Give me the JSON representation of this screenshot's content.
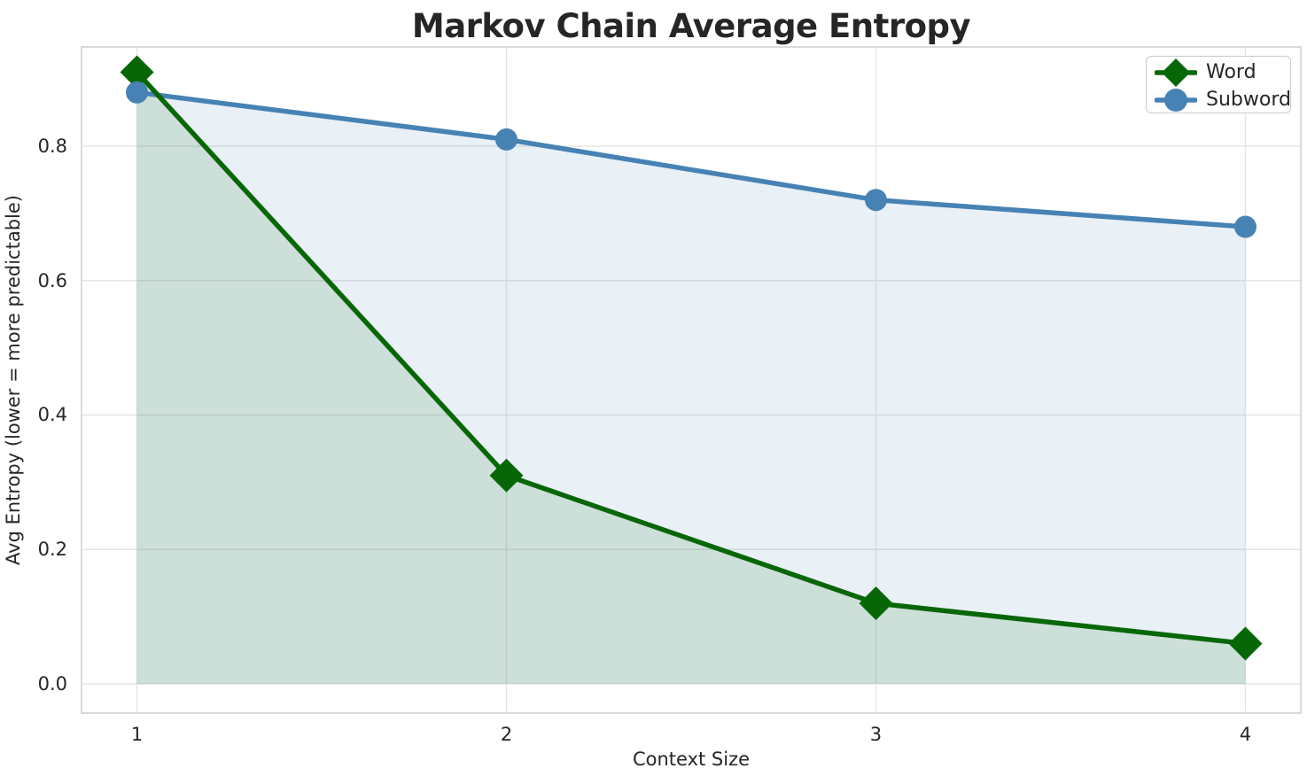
{
  "chart_data": {
    "type": "line",
    "title": "Markov Chain Average Entropy",
    "xlabel": "Context Size",
    "ylabel": "Avg Entropy (lower = more predictable)",
    "x": [
      1,
      2,
      3,
      4
    ],
    "series": [
      {
        "name": "Word",
        "values": [
          0.91,
          0.31,
          0.12,
          0.06
        ],
        "color": "#076707",
        "marker": "diamond",
        "marker_size": 19,
        "fill": true,
        "fill_color": "rgba(7,103,7,0.12)"
      },
      {
        "name": "Subword",
        "values": [
          0.88,
          0.81,
          0.72,
          0.68
        ],
        "color": "#4682B4",
        "marker": "circle",
        "marker_size": 12.5,
        "fill": true,
        "fill_color": "rgba(70,130,180,0.12)"
      }
    ],
    "xticks": [
      1,
      2,
      3,
      4
    ],
    "xtick_labels": [
      "1",
      "2",
      "3",
      "4"
    ],
    "ytick_values": [
      0,
      0.2,
      0.4,
      0.6,
      0.8
    ],
    "ytick_labels": [
      "0.0",
      "0.2",
      "0.4",
      "0.6",
      "0.8"
    ],
    "xlim": [
      0.85,
      4.15
    ],
    "ylim": [
      -0.0435,
      0.9476
    ],
    "fill_baseline": 0,
    "grid": true,
    "legend": {
      "position": "upper right",
      "entries": [
        "Word",
        "Subword"
      ]
    },
    "colors": {
      "grid": "#e5e5e5",
      "spine": "#cbcbcb",
      "text": "#262626",
      "background": "#ffffff",
      "line_width": 5.5
    }
  }
}
